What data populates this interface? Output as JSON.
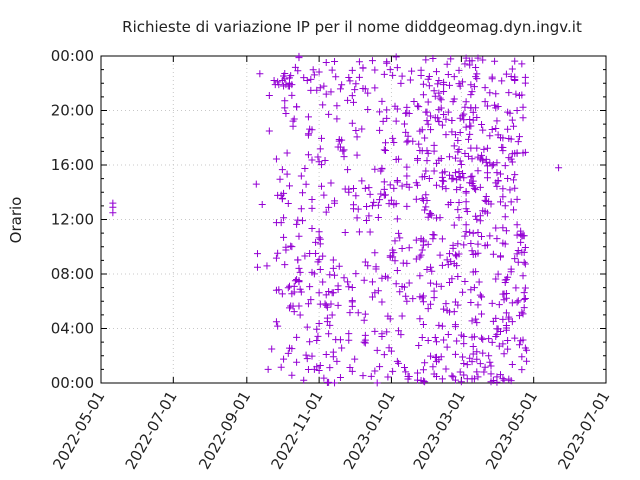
{
  "chart_data": {
    "type": "scatter",
    "title": "Richieste di variazione IP per il nome diddgeomag.dyn.ingv.it",
    "xlabel": "",
    "ylabel": "Orario",
    "x_ticks": [
      "2022-05-01",
      "2022-07-01",
      "2022-09-01",
      "2022-11-01",
      "2023-01-01",
      "2023-03-01",
      "2023-05-01",
      "2023-07-01"
    ],
    "y_ticks": [
      "00:00",
      "04:00",
      "08:00",
      "12:00",
      "16:00",
      "20:00",
      "00:00"
    ],
    "xlim": [
      "2022-05-01",
      "2023-07-01"
    ],
    "ylim_hours": [
      0,
      24
    ],
    "grid": true,
    "marker": "+",
    "color": "#9400d3",
    "series": [
      {
        "points": [
          [
            "2022-05-11",
            13.2
          ],
          [
            "2022-05-11",
            12.9
          ],
          [
            "2022-05-11",
            12.5
          ],
          [
            "2022-09-09",
            14.6
          ],
          [
            "2022-09-10",
            9.5
          ],
          [
            "2022-09-10",
            8.5
          ],
          [
            "2022-09-12",
            22.7
          ],
          [
            "2022-09-14",
            13.1
          ],
          [
            "2022-09-18",
            8.6
          ],
          [
            "2022-09-19",
            1.0
          ],
          [
            "2022-09-20",
            21.1
          ],
          [
            "2022-09-20",
            18.5
          ],
          [
            "2022-09-22",
            2.5
          ],
          [
            "2022-09-24",
            22.2
          ],
          [
            "2022-09-25",
            21.9
          ],
          [
            "2022-09-27",
            22.1
          ],
          [
            "2022-09-28",
            21.9
          ],
          [
            "2022-10-01",
            22.2
          ],
          [
            "2022-10-02",
            21.8
          ],
          [
            "2022-10-04",
            21.9
          ],
          [
            "2022-10-06",
            21.8
          ],
          [
            "2022-10-07",
            22.0
          ],
          [
            "2022-10-09",
            21.9
          ]
        ]
      }
    ]
  }
}
